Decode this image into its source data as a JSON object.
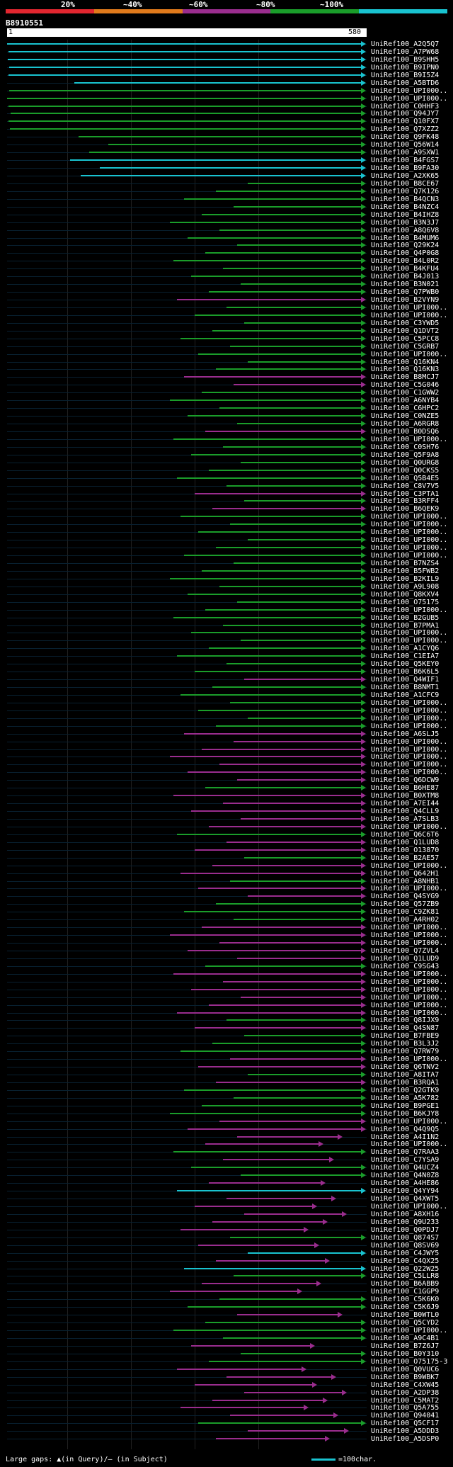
{
  "legend": {
    "labels": [
      "20%",
      "~40%",
      "~60%",
      "~80%",
      "~100%"
    ],
    "colors": [
      "#e2262f",
      "#e07a1b",
      "#9a2d8e",
      "#1a9d2a",
      "#19c3d0"
    ]
  },
  "query": {
    "name": "B8910551",
    "start": "1",
    "end": "580"
  },
  "footer": {
    "gaps_text": "Large gaps: ▲(in Query)/— (in Subject)",
    "scale_text": "=100char."
  },
  "hits": [
    {
      "label": "UniRef100_A2Q5Q7",
      "c": "cyan"
    },
    {
      "label": "UniRef100_A7PW68",
      "c": "cyan"
    },
    {
      "label": "UniRef100_B9SHH5",
      "c": "cyan"
    },
    {
      "label": "UniRef100_B9IPN0",
      "c": "cyan"
    },
    {
      "label": "UniRef100_B9I5Z4",
      "c": "cyan"
    },
    {
      "label": "UniRef100_A5BTD6",
      "c": "cyan"
    },
    {
      "label": "UniRef100_UPI000..",
      "c": "green"
    },
    {
      "label": "UniRef100_UPI000..",
      "c": "green"
    },
    {
      "label": "UniRef100_C0HHF3",
      "c": "green"
    },
    {
      "label": "UniRef100_Q94JY7",
      "c": "green"
    },
    {
      "label": "UniRef100_Q10FX7",
      "c": "green"
    },
    {
      "label": "UniRef100_Q7XZZ2",
      "c": "green"
    },
    {
      "label": "UniRef100_Q9FK48",
      "c": "green"
    },
    {
      "label": "UniRef100_Q56W14",
      "c": "green"
    },
    {
      "label": "UniRef100_A9SXW1",
      "c": "green"
    },
    {
      "label": "UniRef100_B4FGS7",
      "c": "cyan"
    },
    {
      "label": "UniRef100_B9FA30",
      "c": "cyan"
    },
    {
      "label": "UniRef100_A2XK65",
      "c": "cyan"
    },
    {
      "label": "UniRef100_B8CE67",
      "c": "green"
    },
    {
      "label": "UniRef100_Q7K126",
      "c": "green"
    },
    {
      "label": "UniRef100_B4QCN3",
      "c": "green"
    },
    {
      "label": "UniRef100_B4NZC4",
      "c": "green"
    },
    {
      "label": "UniRef100_B4IHZ8",
      "c": "green"
    },
    {
      "label": "UniRef100_B3N3J7",
      "c": "green"
    },
    {
      "label": "UniRef100_A8Q6V8",
      "c": "green"
    },
    {
      "label": "UniRef100_B4MUM6",
      "c": "green"
    },
    {
      "label": "UniRef100_Q29K24",
      "c": "green"
    },
    {
      "label": "UniRef100_Q4P0G8",
      "c": "green"
    },
    {
      "label": "UniRef100_B4L0R2",
      "c": "green"
    },
    {
      "label": "UniRef100_B4KFU4",
      "c": "green"
    },
    {
      "label": "UniRef100_B4J013",
      "c": "green"
    },
    {
      "label": "UniRef100_B3N021",
      "c": "green"
    },
    {
      "label": "UniRef100_Q7PWB0",
      "c": "green"
    },
    {
      "label": "UniRef100_B2VYN9",
      "c": "magenta"
    },
    {
      "label": "UniRef100_UPI000..",
      "c": "green"
    },
    {
      "label": "UniRef100_UPI000..",
      "c": "green"
    },
    {
      "label": "UniRef100_C3YWD5",
      "c": "green"
    },
    {
      "label": "UniRef100_Q1DVT2",
      "c": "green"
    },
    {
      "label": "UniRef100_C5PCC8",
      "c": "green"
    },
    {
      "label": "UniRef100_C5GRB7",
      "c": "green"
    },
    {
      "label": "UniRef100_UPI000..",
      "c": "green"
    },
    {
      "label": "UniRef100_Q16KN4",
      "c": "green"
    },
    {
      "label": "UniRef100_Q16KN3",
      "c": "green"
    },
    {
      "label": "UniRef100_B8MCJ7",
      "c": "magenta"
    },
    {
      "label": "UniRef100_C5G046",
      "c": "magenta"
    },
    {
      "label": "UniRef100_C1GWW2",
      "c": "green"
    },
    {
      "label": "UniRef100_A6NYB4",
      "c": "green"
    },
    {
      "label": "UniRef100_C6HPC2",
      "c": "green"
    },
    {
      "label": "UniRef100_C0NZE5",
      "c": "green"
    },
    {
      "label": "UniRef100_A6RGR8",
      "c": "green"
    },
    {
      "label": "UniRef100_B0DSQ6",
      "c": "magenta"
    },
    {
      "label": "UniRef100_UPI000..",
      "c": "green"
    },
    {
      "label": "UniRef100_C0SH76",
      "c": "green"
    },
    {
      "label": "UniRef100_Q5F9A8",
      "c": "green"
    },
    {
      "label": "UniRef100_Q0URG8",
      "c": "green"
    },
    {
      "label": "UniRef100_Q0CKS5",
      "c": "green"
    },
    {
      "label": "UniRef100_Q5B4E5",
      "c": "green"
    },
    {
      "label": "UniRef100_C8V7V5",
      "c": "green"
    },
    {
      "label": "UniRef100_C3PTA1",
      "c": "magenta"
    },
    {
      "label": "UniRef100_B3RFF4",
      "c": "green"
    },
    {
      "label": "UniRef100_B6QEK9",
      "c": "magenta"
    },
    {
      "label": "UniRef100_UPI000..",
      "c": "green"
    },
    {
      "label": "UniRef100_UPI000..",
      "c": "green"
    },
    {
      "label": "UniRef100_UPI000..",
      "c": "green"
    },
    {
      "label": "UniRef100_UPI000..",
      "c": "green"
    },
    {
      "label": "UniRef100_UPI000..",
      "c": "green"
    },
    {
      "label": "UniRef100_UPI000..",
      "c": "green"
    },
    {
      "label": "UniRef100_B7NZS4",
      "c": "green"
    },
    {
      "label": "UniRef100_B5FWB2",
      "c": "green"
    },
    {
      "label": "UniRef100_B2KIL9",
      "c": "green"
    },
    {
      "label": "UniRef100_A9L908",
      "c": "green"
    },
    {
      "label": "UniRef100_Q8KXV4",
      "c": "green"
    },
    {
      "label": "UniRef100_O75175",
      "c": "green"
    },
    {
      "label": "UniRef100_UPI000..",
      "c": "green"
    },
    {
      "label": "UniRef100_B2GUB5",
      "c": "green"
    },
    {
      "label": "UniRef100_B7PMA1",
      "c": "green"
    },
    {
      "label": "UniRef100_UPI000..",
      "c": "green"
    },
    {
      "label": "UniRef100_UPI000..",
      "c": "green"
    },
    {
      "label": "UniRef100_A1CYQ6",
      "c": "green"
    },
    {
      "label": "UniRef100_C1EIA7",
      "c": "green"
    },
    {
      "label": "UniRef100_Q5KEY0",
      "c": "green"
    },
    {
      "label": "UniRef100_B6K6L5",
      "c": "green"
    },
    {
      "label": "UniRef100_Q4WIF1",
      "c": "magenta"
    },
    {
      "label": "UniRef100_B8NMT1",
      "c": "green"
    },
    {
      "label": "UniRef100_A1CFC9",
      "c": "green"
    },
    {
      "label": "UniRef100_UPI000..",
      "c": "green"
    },
    {
      "label": "UniRef100_UPI000..",
      "c": "green"
    },
    {
      "label": "UniRef100_UPI000..",
      "c": "green"
    },
    {
      "label": "UniRef100_UPI000..",
      "c": "green"
    },
    {
      "label": "UniRef100_A6SLJ5",
      "c": "magenta"
    },
    {
      "label": "UniRef100_UPI000..",
      "c": "magenta"
    },
    {
      "label": "UniRef100_UPI000..",
      "c": "magenta"
    },
    {
      "label": "UniRef100_UPI000..",
      "c": "magenta"
    },
    {
      "label": "UniRef100_UPI000..",
      "c": "magenta"
    },
    {
      "label": "UniRef100_UPI000..",
      "c": "magenta"
    },
    {
      "label": "UniRef100_Q6DCW9",
      "c": "magenta"
    },
    {
      "label": "UniRef100_B6HE87",
      "c": "green"
    },
    {
      "label": "UniRef100_B0XTM8",
      "c": "magenta"
    },
    {
      "label": "UniRef100_A7EI44",
      "c": "magenta"
    },
    {
      "label": "UniRef100_Q4CLL9",
      "c": "magenta"
    },
    {
      "label": "UniRef100_A7SLB3",
      "c": "magenta"
    },
    {
      "label": "UniRef100_UPI000..",
      "c": "magenta"
    },
    {
      "label": "UniRef100_Q6C6T6",
      "c": "green"
    },
    {
      "label": "UniRef100_Q1LUD8",
      "c": "magenta"
    },
    {
      "label": "UniRef100_O13870",
      "c": "magenta"
    },
    {
      "label": "UniRef100_B2AE57",
      "c": "green"
    },
    {
      "label": "UniRef100_UPI000..",
      "c": "magenta"
    },
    {
      "label": "UniRef100_Q642H1",
      "c": "magenta"
    },
    {
      "label": "UniRef100_A8NHB1",
      "c": "green"
    },
    {
      "label": "UniRef100_UPI000..",
      "c": "magenta"
    },
    {
      "label": "UniRef100_Q4SYG9",
      "c": "magenta"
    },
    {
      "label": "UniRef100_Q57ZB9",
      "c": "green"
    },
    {
      "label": "UniRef100_C9ZK81",
      "c": "green"
    },
    {
      "label": "UniRef100_A4RH02",
      "c": "green"
    },
    {
      "label": "UniRef100_UPI000..",
      "c": "magenta"
    },
    {
      "label": "UniRef100_UPI000..",
      "c": "magenta"
    },
    {
      "label": "UniRef100_UPI000..",
      "c": "magenta"
    },
    {
      "label": "UniRef100_Q7ZVL4",
      "c": "magenta"
    },
    {
      "label": "UniRef100_Q1LUD9",
      "c": "magenta"
    },
    {
      "label": "UniRef100_C9SG43",
      "c": "green"
    },
    {
      "label": "UniRef100_UPI000..",
      "c": "magenta"
    },
    {
      "label": "UniRef100_UPI000..",
      "c": "magenta"
    },
    {
      "label": "UniRef100_UPI000..",
      "c": "magenta"
    },
    {
      "label": "UniRef100_UPI000..",
      "c": "magenta"
    },
    {
      "label": "UniRef100_UPI000..",
      "c": "magenta"
    },
    {
      "label": "UniRef100_UPI000..",
      "c": "magenta"
    },
    {
      "label": "UniRef100_Q8IJX9",
      "c": "green"
    },
    {
      "label": "UniRef100_Q4SN87",
      "c": "magenta"
    },
    {
      "label": "UniRef100_B7FBE9",
      "c": "green"
    },
    {
      "label": "UniRef100_B3L3J2",
      "c": "green"
    },
    {
      "label": "UniRef100_Q7RW79",
      "c": "green"
    },
    {
      "label": "UniRef100_UPI000..",
      "c": "magenta"
    },
    {
      "label": "UniRef100_Q6TNV2",
      "c": "magenta"
    },
    {
      "label": "UniRef100_A8ITA7",
      "c": "green"
    },
    {
      "label": "UniRef100_B3RQA1",
      "c": "magenta"
    },
    {
      "label": "UniRef100_Q2GTK9",
      "c": "green"
    },
    {
      "label": "UniRef100_A5K782",
      "c": "green"
    },
    {
      "label": "UniRef100_B9PGE1",
      "c": "green"
    },
    {
      "label": "UniRef100_B6KJY8",
      "c": "green"
    },
    {
      "label": "UniRef100_UPI000..",
      "c": "magenta"
    },
    {
      "label": "UniRef100_Q4Q9Q5",
      "c": "magenta"
    },
    {
      "label": "UniRef100_A4I1N2",
      "c": "magenta"
    },
    {
      "label": "UniRef100_UPI000..",
      "c": "magenta"
    },
    {
      "label": "UniRef100_Q7RAA3",
      "c": "green"
    },
    {
      "label": "UniRef100_C7YSA9",
      "c": "magenta"
    },
    {
      "label": "UniRef100_Q4UCZ4",
      "c": "green"
    },
    {
      "label": "UniRef100_Q4N0Z8",
      "c": "green"
    },
    {
      "label": "UniRef100_A4HE86",
      "c": "magenta"
    },
    {
      "label": "UniRef100_Q4YY94",
      "c": "cyan"
    },
    {
      "label": "UniRef100_Q4XWT5",
      "c": "magenta"
    },
    {
      "label": "UniRef100_UPI000..",
      "c": "magenta"
    },
    {
      "label": "UniRef100_A8XH16",
      "c": "magenta"
    },
    {
      "label": "UniRef100_Q9U233",
      "c": "magenta"
    },
    {
      "label": "UniRef100_Q0PDJ7",
      "c": "magenta"
    },
    {
      "label": "UniRef100_Q874S7",
      "c": "green"
    },
    {
      "label": "UniRef100_Q8SV69",
      "c": "magenta"
    },
    {
      "label": "UniRef100_C4JWY5",
      "c": "cyan"
    },
    {
      "label": "UniRef100_C4QX25",
      "c": "magenta"
    },
    {
      "label": "UniRef100_Q22W25",
      "c": "cyan"
    },
    {
      "label": "UniRef100_C5LLR8",
      "c": "green"
    },
    {
      "label": "UniRef100_B6ABB9",
      "c": "magenta"
    },
    {
      "label": "UniRef100_C1GGP9",
      "c": "magenta"
    },
    {
      "label": "UniRef100_C5K6K0",
      "c": "green"
    },
    {
      "label": "UniRef100_C5K6J9",
      "c": "green"
    },
    {
      "label": "UniRef100_B0WTL0",
      "c": "magenta"
    },
    {
      "label": "UniRef100_Q5CYD2",
      "c": "green"
    },
    {
      "label": "UniRef100_UPI000..",
      "c": "green"
    },
    {
      "label": "UniRef100_A9C4B1",
      "c": "green"
    },
    {
      "label": "UniRef100_B7Z6J7",
      "c": "magenta"
    },
    {
      "label": "UniRef100_B0Y310",
      "c": "green"
    },
    {
      "label": "UniRef100_O75175-3",
      "c": "green"
    },
    {
      "label": "UniRef100_Q0VUC6",
      "c": "magenta"
    },
    {
      "label": "UniRef100_B9WBK7",
      "c": "magenta"
    },
    {
      "label": "UniRef100_C4XW45",
      "c": "magenta"
    },
    {
      "label": "UniRef100_A2DP38",
      "c": "magenta"
    },
    {
      "label": "UniRef100_C5MAT2",
      "c": "magenta"
    },
    {
      "label": "UniRef100_Q5A755",
      "c": "magenta"
    },
    {
      "label": "UniRef100_Q94041",
      "c": "magenta"
    },
    {
      "label": "UniRef100_Q5CF17",
      "c": "green"
    },
    {
      "label": "UniRef100_A5DDD3",
      "c": "magenta"
    },
    {
      "label": "UniRef100_A5DSP0",
      "c": "magenta"
    }
  ],
  "colors": {
    "cyan": "#19c3d0",
    "green": "#1a9d2a",
    "magenta": "#9a2d8e"
  }
}
